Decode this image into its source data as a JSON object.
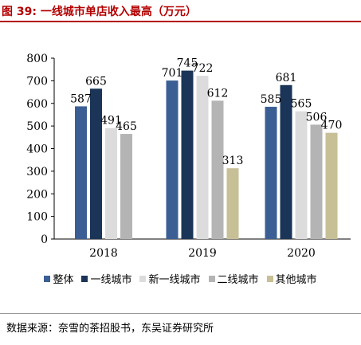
{
  "figure": {
    "title": "图 39:  一线城市单店收入最高（万元）",
    "source": "数据来源：奈雪的茶招股书，东吴证券研究所"
  },
  "chart_data": {
    "type": "bar",
    "title": "图 39:  一线城市单店收入最高（万元）",
    "categories": [
      "2018",
      "2019",
      "2020"
    ],
    "series": [
      {
        "name": "整体",
        "color": "#3b5f95",
        "values": [
          587,
          701,
          585
        ]
      },
      {
        "name": "一线城市",
        "color": "#1a3557",
        "values": [
          665,
          745,
          681
        ]
      },
      {
        "name": "新一线城市",
        "color": "#dcdcdc",
        "values": [
          491,
          722,
          565
        ]
      },
      {
        "name": "二线城市",
        "color": "#b4b4b4",
        "values": [
          465,
          612,
          506
        ]
      },
      {
        "name": "其他城市",
        "color": "#c7bf96",
        "values": [
          null,
          313,
          470
        ]
      }
    ],
    "ylim": [
      0,
      800
    ],
    "yticks": [
      0,
      100,
      200,
      300,
      400,
      500,
      600,
      700,
      800
    ],
    "grid": false,
    "legend": "bottom"
  }
}
